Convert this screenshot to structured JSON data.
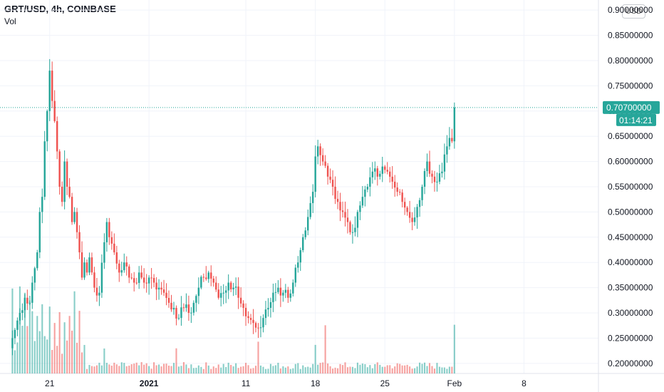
{
  "header": {
    "title": "GRT/USD, 4h, COINBASE",
    "indicator": "Vol",
    "currency_button": "USD"
  },
  "colors": {
    "up": "#26a69a",
    "down": "#ef5350",
    "grid": "#f0f3fa",
    "axis_text": "#131722"
  },
  "price_axis": {
    "labels": [
      "0.90000000",
      "0.85000000",
      "0.80000000",
      "0.75000000",
      "0.70000000",
      "0.65000000",
      "0.60000000",
      "0.55000000",
      "0.50000000",
      "0.45000000",
      "0.40000000",
      "0.35000000",
      "0.30000000",
      "0.25000000",
      "0.20000000"
    ],
    "values": [
      0.9,
      0.85,
      0.8,
      0.75,
      0.7,
      0.65,
      0.6,
      0.55,
      0.5,
      0.45,
      0.4,
      0.35,
      0.3,
      0.25,
      0.2
    ]
  },
  "last_price": {
    "label": "0.70700000",
    "value": 0.707,
    "countdown": "01:14:21"
  },
  "time_axis": {
    "labels": [
      "21",
      "2021",
      "11",
      "18",
      "25",
      "Feb",
      "8"
    ],
    "bar_index": [
      15,
      55,
      94,
      122,
      150,
      178,
      206
    ]
  },
  "chart_data": {
    "type": "candlestick",
    "title": "GRT/USD, 4h, COINBASE",
    "ylim": [
      0.18,
      0.92
    ],
    "x_bar_range": [
      -5,
      236
    ],
    "anchors": [
      [
        0,
        0.25
      ],
      [
        3,
        0.3
      ],
      [
        5,
        0.33
      ],
      [
        7,
        0.32
      ],
      [
        8,
        0.36
      ],
      [
        10,
        0.42
      ],
      [
        11,
        0.5
      ],
      [
        12,
        0.53
      ],
      [
        13,
        0.64
      ],
      [
        14,
        0.7
      ],
      [
        15,
        0.78
      ],
      [
        16,
        0.72
      ],
      [
        17,
        0.68
      ],
      [
        18,
        0.62
      ],
      [
        19,
        0.55
      ],
      [
        20,
        0.52
      ],
      [
        21,
        0.6
      ],
      [
        22,
        0.55
      ],
      [
        23,
        0.53
      ],
      [
        24,
        0.48
      ],
      [
        25,
        0.5
      ],
      [
        26,
        0.46
      ],
      [
        27,
        0.42
      ],
      [
        28,
        0.37
      ],
      [
        29,
        0.4
      ],
      [
        30,
        0.38
      ],
      [
        31,
        0.41
      ],
      [
        33,
        0.35
      ],
      [
        35,
        0.34
      ],
      [
        37,
        0.44
      ],
      [
        38,
        0.48
      ],
      [
        39,
        0.45
      ],
      [
        41,
        0.42
      ],
      [
        43,
        0.38
      ],
      [
        45,
        0.4
      ],
      [
        47,
        0.37
      ],
      [
        49,
        0.36
      ],
      [
        51,
        0.38
      ],
      [
        53,
        0.36
      ],
      [
        55,
        0.37
      ],
      [
        57,
        0.36
      ],
      [
        59,
        0.35
      ],
      [
        61,
        0.34
      ],
      [
        63,
        0.32
      ],
      [
        65,
        0.31
      ],
      [
        67,
        0.29
      ],
      [
        69,
        0.31
      ],
      [
        71,
        0.3
      ],
      [
        73,
        0.32
      ],
      [
        75,
        0.35
      ],
      [
        77,
        0.37
      ],
      [
        79,
        0.38
      ],
      [
        81,
        0.36
      ],
      [
        83,
        0.33
      ],
      [
        85,
        0.34
      ],
      [
        87,
        0.36
      ],
      [
        89,
        0.35
      ],
      [
        91,
        0.33
      ],
      [
        93,
        0.31
      ],
      [
        95,
        0.29
      ],
      [
        97,
        0.28
      ],
      [
        99,
        0.27
      ],
      [
        101,
        0.29
      ],
      [
        103,
        0.31
      ],
      [
        105,
        0.34
      ],
      [
        107,
        0.35
      ],
      [
        109,
        0.34
      ],
      [
        111,
        0.33
      ],
      [
        113,
        0.36
      ],
      [
        115,
        0.4
      ],
      [
        117,
        0.45
      ],
      [
        119,
        0.49
      ],
      [
        121,
        0.54
      ],
      [
        122,
        0.61
      ],
      [
        123,
        0.63
      ],
      [
        125,
        0.6
      ],
      [
        127,
        0.57
      ],
      [
        129,
        0.55
      ],
      [
        131,
        0.52
      ],
      [
        133,
        0.5
      ],
      [
        135,
        0.48
      ],
      [
        137,
        0.46
      ],
      [
        139,
        0.5
      ],
      [
        141,
        0.53
      ],
      [
        143,
        0.55
      ],
      [
        145,
        0.58
      ],
      [
        147,
        0.57
      ],
      [
        149,
        0.59
      ],
      [
        151,
        0.58
      ],
      [
        153,
        0.56
      ],
      [
        155,
        0.54
      ],
      [
        157,
        0.52
      ],
      [
        159,
        0.5
      ],
      [
        161,
        0.48
      ],
      [
        163,
        0.51
      ],
      [
        165,
        0.55
      ],
      [
        167,
        0.6
      ],
      [
        169,
        0.57
      ],
      [
        171,
        0.56
      ],
      [
        173,
        0.58
      ],
      [
        175,
        0.63
      ],
      [
        177,
        0.64
      ],
      [
        178,
        0.707
      ]
    ],
    "volume_peak_bars": [
      0,
      3,
      5,
      7,
      8,
      10,
      12,
      13,
      15,
      17,
      19,
      21,
      23,
      25,
      27,
      37,
      66,
      99,
      122,
      126,
      178
    ],
    "last_value": 0.707
  }
}
